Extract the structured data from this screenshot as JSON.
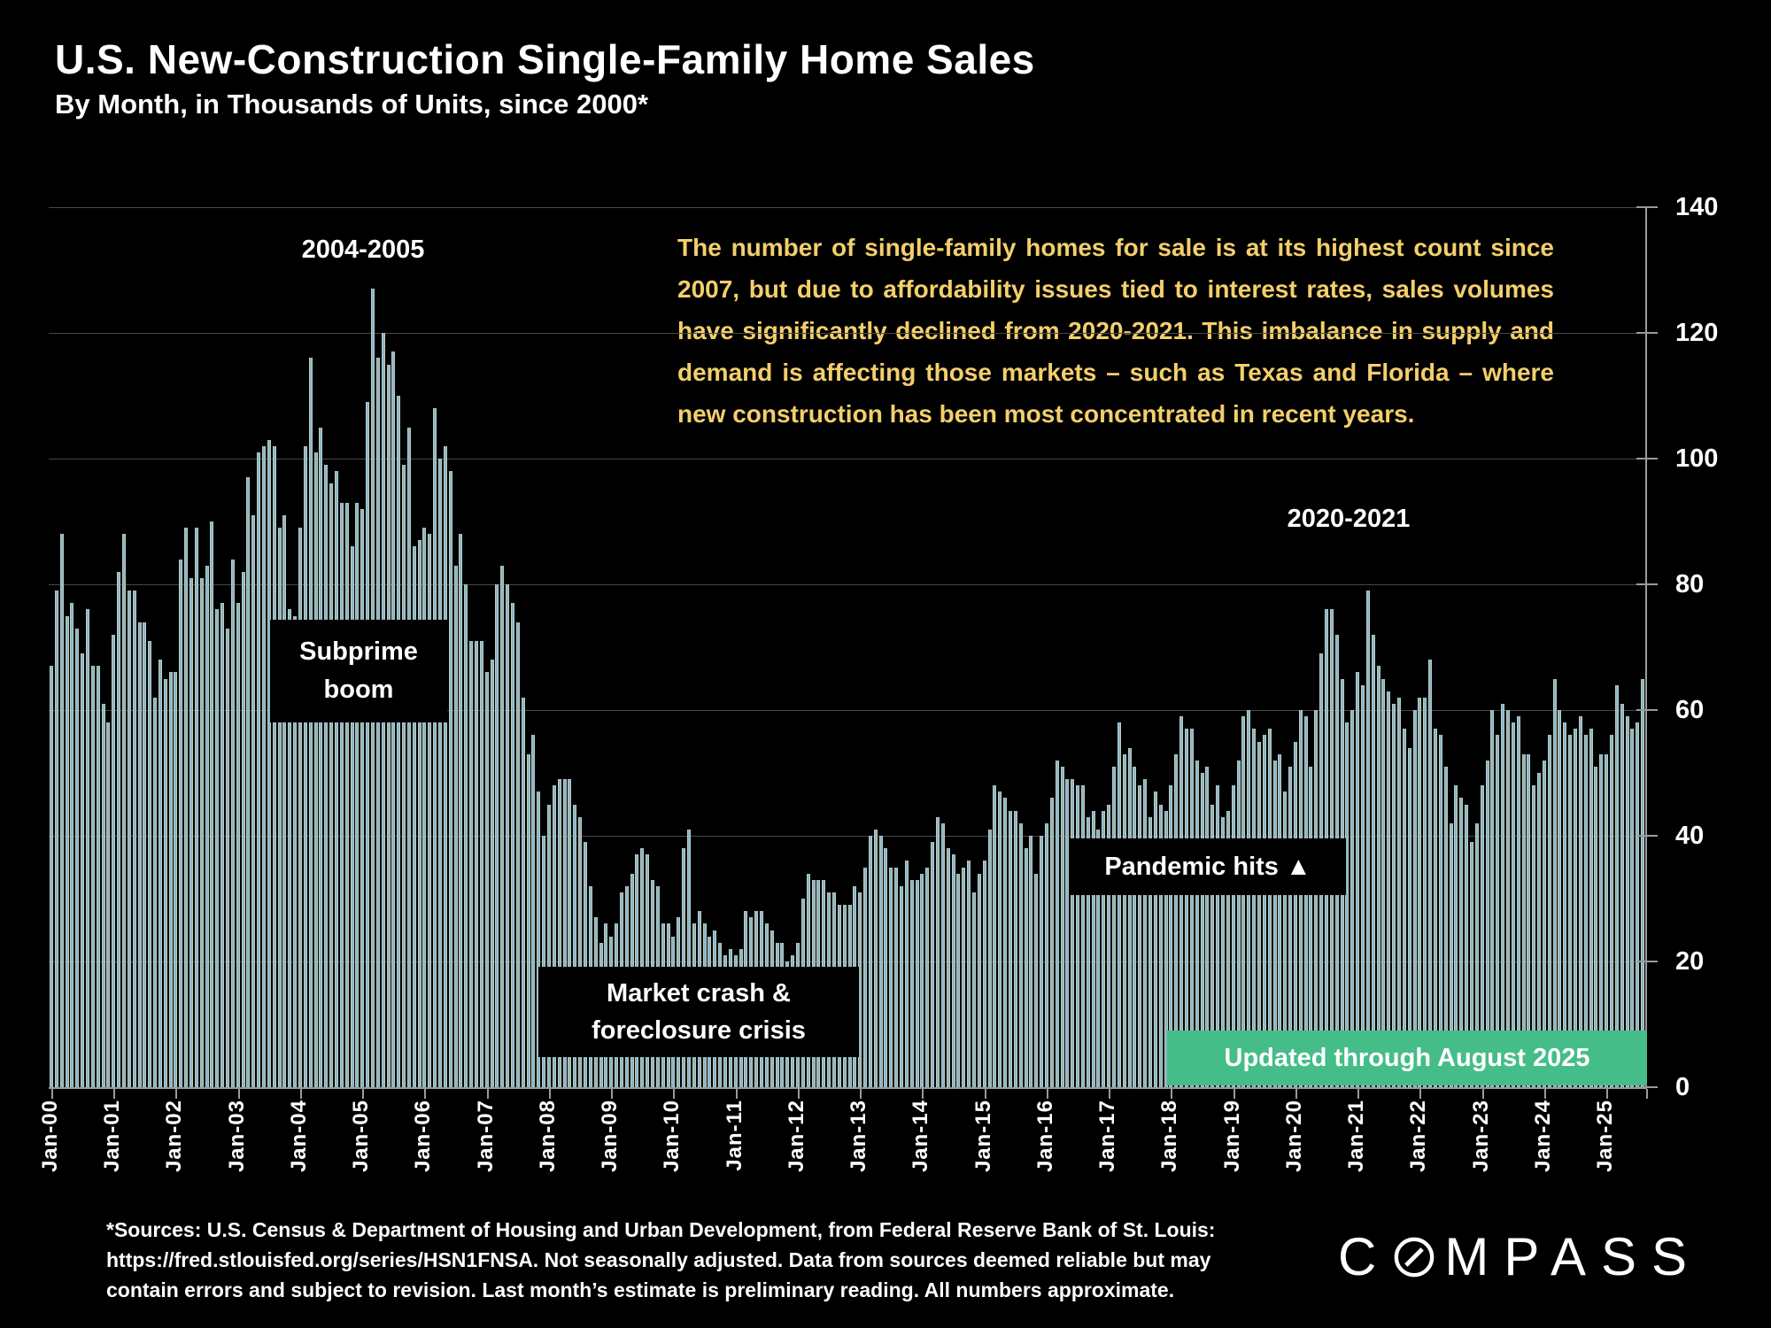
{
  "chart_data": {
    "type": "bar",
    "title": "U.S. New-Construction Single-Family Home Sales",
    "subtitle": "By Month, in Thousands of Units, since 2000*",
    "unit": "thousands of single-family homes sold per month (not seasonally adjusted)",
    "x_first_month": "Jan-00",
    "x_last_month": "Aug-25",
    "xtick_labels": [
      "Jan-00",
      "Jan-01",
      "Jan-02",
      "Jan-03",
      "Jan-04",
      "Jan-05",
      "Jan-06",
      "Jan-07",
      "Jan-08",
      "Jan-09",
      "Jan-10",
      "Jan-11",
      "Jan-12",
      "Jan-13",
      "Jan-14",
      "Jan-15",
      "Jan-16",
      "Jan-17",
      "Jan-18",
      "Jan-19",
      "Jan-20",
      "Jan-21",
      "Jan-22",
      "Jan-23",
      "Jan-24",
      "Jan-25"
    ],
    "ylim": [
      0,
      140
    ],
    "ytick_step": 20,
    "gridlines": "horizontal",
    "legend": "none",
    "values": [
      67,
      79,
      88,
      75,
      77,
      73,
      69,
      76,
      67,
      67,
      61,
      58,
      72,
      82,
      88,
      79,
      79,
      74,
      74,
      71,
      62,
      68,
      65,
      66,
      66,
      84,
      89,
      81,
      89,
      81,
      83,
      90,
      76,
      77,
      73,
      84,
      77,
      82,
      97,
      91,
      101,
      102,
      103,
      102,
      89,
      91,
      76,
      75,
      89,
      102,
      116,
      101,
      105,
      99,
      96,
      98,
      93,
      93,
      86,
      93,
      92,
      109,
      127,
      116,
      120,
      115,
      117,
      110,
      99,
      105,
      86,
      87,
      89,
      88,
      108,
      100,
      102,
      98,
      83,
      88,
      80,
      71,
      71,
      71,
      66,
      68,
      80,
      83,
      80,
      77,
      74,
      62,
      53,
      56,
      47,
      40,
      45,
      48,
      49,
      49,
      49,
      45,
      43,
      39,
      32,
      27,
      23,
      26,
      24,
      26,
      31,
      32,
      34,
      37,
      38,
      37,
      33,
      32,
      26,
      26,
      24,
      27,
      38,
      41,
      26,
      28,
      26,
      24,
      25,
      23,
      21,
      22,
      21,
      22,
      28,
      27,
      28,
      28,
      26,
      25,
      23,
      23,
      20,
      21,
      23,
      30,
      34,
      33,
      33,
      33,
      31,
      31,
      29,
      29,
      29,
      32,
      31,
      35,
      40,
      41,
      40,
      38,
      35,
      35,
      32,
      36,
      33,
      33,
      34,
      35,
      39,
      43,
      42,
      38,
      37,
      34,
      35,
      36,
      31,
      34,
      36,
      41,
      48,
      47,
      46,
      44,
      44,
      42,
      38,
      40,
      34,
      40,
      42,
      46,
      52,
      51,
      49,
      49,
      48,
      48,
      43,
      44,
      41,
      44,
      45,
      51,
      58,
      53,
      54,
      51,
      48,
      49,
      43,
      47,
      45,
      44,
      48,
      53,
      59,
      57,
      57,
      52,
      50,
      51,
      45,
      48,
      43,
      44,
      48,
      52,
      59,
      60,
      57,
      55,
      56,
      57,
      52,
      53,
      47,
      51,
      55,
      60,
      59,
      51,
      60,
      69,
      76,
      76,
      72,
      65,
      58,
      60,
      66,
      64,
      79,
      72,
      67,
      65,
      63,
      61,
      62,
      57,
      54,
      60,
      62,
      62,
      68,
      57,
      56,
      51,
      42,
      48,
      46,
      45,
      39,
      42,
      48,
      52,
      60,
      56,
      61,
      60,
      58,
      59,
      53,
      53,
      48,
      50,
      52,
      56,
      65,
      60,
      58,
      56,
      57,
      59,
      56,
      57,
      51,
      53,
      53,
      56,
      64,
      61,
      59,
      57,
      58,
      65
    ],
    "bar_fill": "#8cb3c9",
    "bar_edge": "#b7ccbd",
    "grid_color": "#474747",
    "axis_color": "#9a9a9a"
  },
  "commentary": "The number of single-family homes for sale is at its highest count since 2007, but due to affordability issues tied to interest rates, sales volumes have significantly declined from 2020-2021. This imbalance in supply and demand is affecting those markets – such as Texas and Florida – where new construction has been most concentrated in recent years.",
  "commentary_color": "#f3cf6b",
  "annotations": {
    "peak_0405": "2004-2005",
    "subprime": "Subprime boom",
    "market_crash": "Market crash & foreclosure crisis",
    "pandemic": "Pandemic hits ▲",
    "peak_2021": "2020-2021",
    "banner": "Updated through August 2025"
  },
  "banner_color": "#45bd88",
  "footnote_lines": [
    "*Sources: U.S. Census & Department of Housing and Urban Development, from Federal Reserve Bank of St. Louis:",
    "https://fred.stlouisfed.org/series/HSN1FNSA. Not seasonally adjusted. Data from sources deemed reliable but may",
    "contain errors and subject to revision. Last month’s estimate is preliminary reading. All numbers approximate."
  ],
  "logo": {
    "name": "COMPASS",
    "prefix": "C",
    "suffix": "MPASS"
  }
}
